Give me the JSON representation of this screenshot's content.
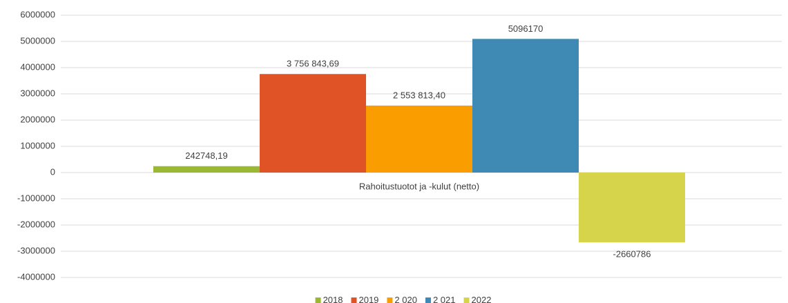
{
  "chart_data": {
    "type": "bar",
    "categories": [
      "Rahoitustuotot ja -kulut (netto)"
    ],
    "series": [
      {
        "name": "2018",
        "color": "#9bb832",
        "values": [
          242748.19
        ],
        "value_labels": [
          "242748,19"
        ]
      },
      {
        "name": "2019",
        "color": "#e05326",
        "values": [
          3756843.69
        ],
        "value_labels": [
          "3 756 843,69"
        ]
      },
      {
        "name": "2 020",
        "color": "#f99d00",
        "values": [
          2553813.4
        ],
        "value_labels": [
          "2 553 813,40"
        ]
      },
      {
        "name": "2 021",
        "color": "#3e8ab5",
        "values": [
          5096170
        ]
      },
      {
        "name": "2022",
        "color": "#d6d44a",
        "values": [
          -2660786
        ]
      }
    ],
    "ylim": [
      -4000000,
      6000000
    ],
    "yticks": [
      -4000000,
      -3000000,
      -2000000,
      -1000000,
      0,
      1000000,
      2000000,
      3000000,
      4000000,
      5000000,
      6000000
    ],
    "grid": true,
    "legend": "bottom"
  }
}
